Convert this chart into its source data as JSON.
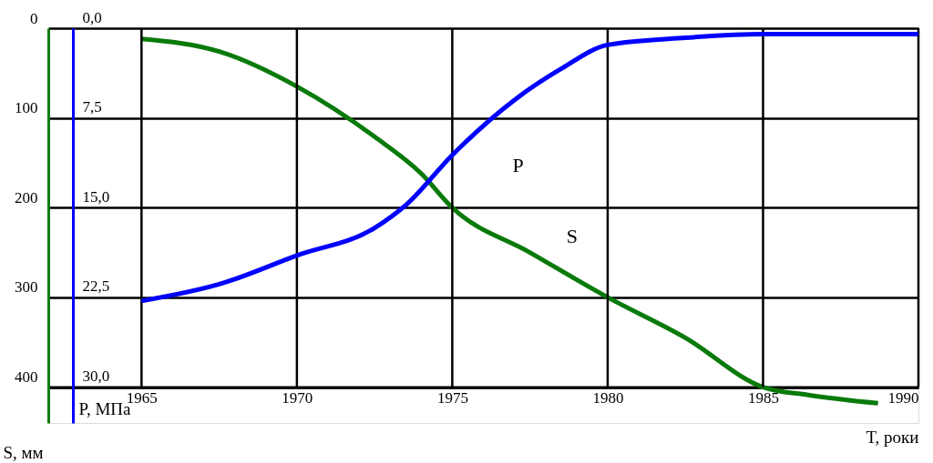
{
  "chart_data": {
    "type": "line",
    "xlabel": "T,  роки",
    "ylabel": "S, мм",
    "y2label": "P,  МПа",
    "series": [
      {
        "name": "S",
        "color": "#0a7a0a",
        "x": [
          1965,
          1967.5,
          1970,
          1972.5,
          1974,
          1975,
          1977.5,
          1980,
          1982.5,
          1985,
          1986.5,
          1988.7
        ],
        "values": [
          12,
          26,
          65,
          121,
          162,
          200,
          250,
          300,
          345,
          400,
          409,
          418
        ]
      },
      {
        "name": "P",
        "color": "#0000ff",
        "axis": "y2",
        "x": [
          1965,
          1967.5,
          1970,
          1972.5,
          1973.5,
          1975,
          1977,
          1978.5,
          1980,
          1982.5,
          1985,
          1990
        ],
        "values": [
          22.8,
          21.4,
          19.0,
          16.7,
          14.8,
          10.6,
          6.0,
          3.4,
          1.4,
          0.8,
          0.5,
          0.5
        ]
      }
    ],
    "xlim": [
      1962,
      1990
    ],
    "xticks": [
      1965,
      1970,
      1975,
      1980,
      1985,
      1990
    ],
    "ylim": [
      440,
      0
    ],
    "yticks": [
      0,
      100,
      200,
      300,
      400
    ],
    "y2lim": [
      33,
      0
    ],
    "y2ticks": [
      {
        "value": 0,
        "label": "0,0"
      },
      {
        "value": 7.5,
        "label": "7,5"
      },
      {
        "value": 15,
        "label": "15,0"
      },
      {
        "value": 22.5,
        "label": "22,5"
      },
      {
        "value": 30,
        "label": "30,0"
      }
    ],
    "grid": true,
    "line_style": "solid",
    "legend": false
  }
}
